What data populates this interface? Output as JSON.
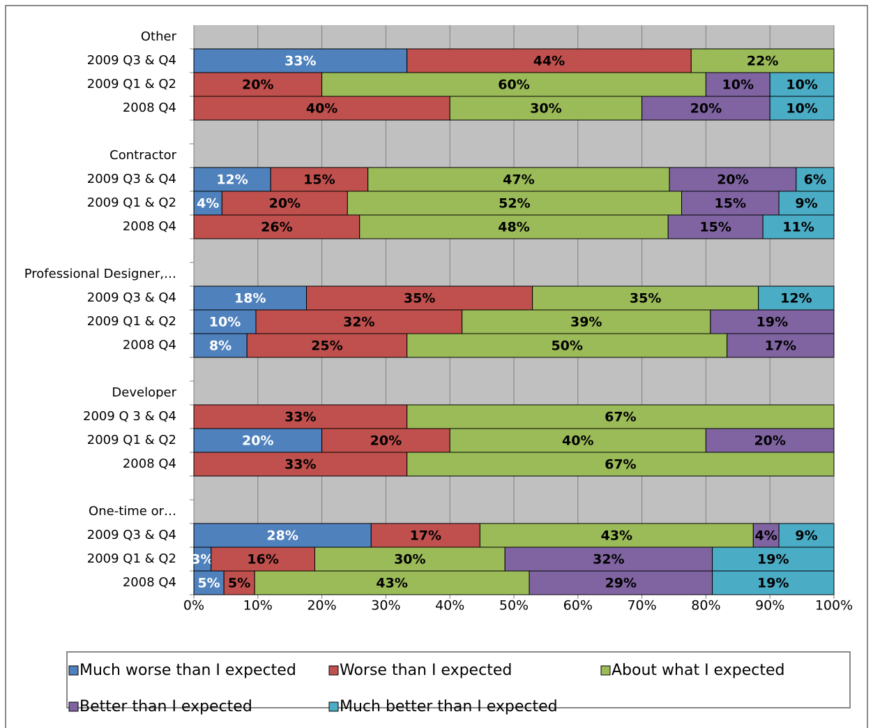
{
  "chart_data": {
    "type": "stacked_bar_horizontal",
    "categories": [
      "Other",
      "2009 Q3 & Q4",
      "2009 Q1 & Q2",
      "2008 Q4",
      null,
      "Contractor",
      "2009 Q3 & Q4",
      "2009 Q1 & Q2",
      "2008 Q4",
      null,
      "Professional Designer,…",
      "2009 Q3 & Q4",
      "2009 Q1 & Q2",
      "2008 Q4",
      null,
      "Developer",
      "2009 Q 3 & Q4",
      "2009 Q1 & Q2",
      "2008 Q4",
      null,
      "One-time or…",
      "2009 Q3 & Q4",
      "2009 Q1 & Q2",
      "2008 Q4"
    ],
    "series": [
      {
        "name": "Much worse than I expected",
        "color": "#4f81bd",
        "label_color": "#ffffff",
        "values": [
          null,
          33.3,
          null,
          null,
          null,
          null,
          12.0,
          4.4,
          null,
          null,
          null,
          17.6,
          9.7,
          8.3,
          null,
          null,
          null,
          20,
          null,
          null,
          null,
          27.7,
          2.7,
          4.7
        ],
        "value_labels": [
          null,
          "33%",
          null,
          null,
          null,
          null,
          "12%",
          "4%",
          null,
          null,
          null,
          "18%",
          "10%",
          "8%",
          null,
          null,
          null,
          "20%",
          null,
          null,
          null,
          "28%",
          "3%",
          "5%"
        ]
      },
      {
        "name": "Worse than I expected",
        "color": "#c0504d",
        "label_color": "#000000",
        "values": [
          null,
          44.4,
          20,
          40,
          null,
          null,
          15.2,
          19.6,
          25.9,
          null,
          null,
          35.3,
          32.2,
          25.0,
          null,
          null,
          33.3,
          20,
          33.3,
          null,
          null,
          17.0,
          16.2,
          4.8
        ],
        "value_labels": [
          null,
          "44%",
          "20%",
          "40%",
          null,
          null,
          "15%",
          "20%",
          "26%",
          null,
          null,
          "35%",
          "32%",
          "25%",
          null,
          null,
          "33%",
          "20%",
          "33%",
          null,
          null,
          "17%",
          "16%",
          "5%"
        ]
      },
      {
        "name": "About what I expected",
        "color": "#9bbb59",
        "label_color": "#000000",
        "values": [
          null,
          22.3,
          60,
          30,
          null,
          null,
          47.1,
          52.2,
          48.2,
          null,
          null,
          35.3,
          38.8,
          50.0,
          null,
          null,
          66.7,
          40,
          66.7,
          null,
          null,
          42.7,
          29.7,
          42.9
        ],
        "value_labels": [
          null,
          "22%",
          "60%",
          "30%",
          null,
          null,
          "47%",
          "52%",
          "48%",
          null,
          null,
          "35%",
          "39%",
          "50%",
          null,
          null,
          "67%",
          "40%",
          "67%",
          null,
          null,
          "43%",
          "30%",
          "43%"
        ]
      },
      {
        "name": "Better than I expected",
        "color": "#8064a2",
        "label_color": "#000000",
        "values": [
          null,
          null,
          10,
          20,
          null,
          null,
          19.8,
          15.2,
          14.8,
          null,
          null,
          null,
          19.3,
          16.7,
          null,
          null,
          null,
          20,
          null,
          null,
          null,
          4.0,
          32.4,
          28.6
        ],
        "value_labels": [
          null,
          null,
          "10%",
          "20%",
          null,
          null,
          "20%",
          "15%",
          "15%",
          null,
          null,
          null,
          "19%",
          "17%",
          null,
          null,
          null,
          "20%",
          null,
          null,
          null,
          "4%",
          "32%",
          "29%"
        ]
      },
      {
        "name": "Much better than I expected",
        "color": "#4bacc6",
        "label_color": "#000000",
        "values": [
          null,
          null,
          10,
          10,
          null,
          null,
          5.9,
          8.6,
          11.1,
          null,
          null,
          11.8,
          null,
          null,
          null,
          null,
          null,
          null,
          null,
          null,
          null,
          8.6,
          19.0,
          19.0
        ],
        "value_labels": [
          null,
          null,
          "10%",
          "10%",
          null,
          null,
          "6%",
          "9%",
          "11%",
          null,
          null,
          "12%",
          null,
          null,
          null,
          null,
          null,
          null,
          null,
          null,
          null,
          "9%",
          "19%",
          "19%"
        ]
      }
    ],
    "xlim": [
      0,
      100
    ],
    "xticks": [
      {
        "value": 0,
        "label": "0%"
      },
      {
        "value": 10,
        "label": "10%"
      },
      {
        "value": 20,
        "label": "20%"
      },
      {
        "value": 30,
        "label": "30%"
      },
      {
        "value": 40,
        "label": "40%"
      },
      {
        "value": 50,
        "label": "50%"
      },
      {
        "value": 60,
        "label": "60%"
      },
      {
        "value": 70,
        "label": "70%"
      },
      {
        "value": 80,
        "label": "80%"
      },
      {
        "value": 90,
        "label": "90%"
      },
      {
        "value": 100,
        "label": "100%"
      }
    ],
    "grid": true,
    "legend": "bottom",
    "plot_background": "#c0c0c0"
  }
}
